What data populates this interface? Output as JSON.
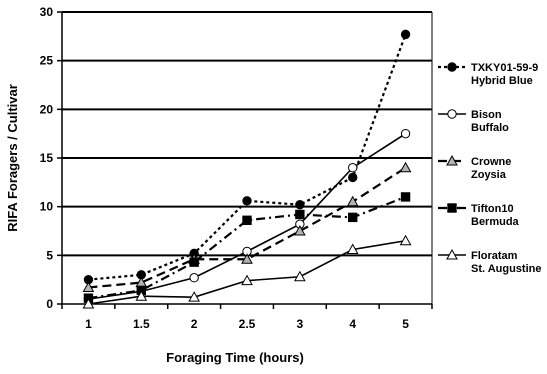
{
  "chart_data": {
    "type": "line",
    "title": "",
    "xlabel": "Foraging Time (hours)",
    "ylabel": "RIFA Foragers / Cultivar",
    "categories": [
      "1",
      "1.5",
      "2",
      "2.5",
      "3",
      "4",
      "5"
    ],
    "ylim": [
      0,
      30
    ],
    "yticks": [
      0,
      5,
      10,
      15,
      20,
      25,
      30
    ],
    "grid": "horizontal",
    "legend_position": "right",
    "series": [
      {
        "name": "TXKY01-59-9 Hybrid Blue",
        "legend_lines": [
          "TXKY01-59-9",
          "Hybrid Blue"
        ],
        "marker": "filled-circle",
        "line_style": "dotted",
        "values": [
          2.5,
          3.0,
          5.2,
          10.6,
          10.2,
          13.0,
          27.7
        ]
      },
      {
        "name": "Bison Buffalo",
        "legend_lines": [
          "Bison",
          "Buffalo"
        ],
        "marker": "open-circle",
        "line_style": "solid",
        "values": [
          0.5,
          1.3,
          2.7,
          5.4,
          8.2,
          14.0,
          17.5
        ]
      },
      {
        "name": "Crowne Zoysia",
        "legend_lines": [
          "Crowne",
          "Zoysia"
        ],
        "marker": "gray-triangle",
        "line_style": "dashed",
        "values": [
          1.7,
          2.2,
          4.6,
          4.6,
          7.5,
          10.5,
          14.0
        ]
      },
      {
        "name": "Tifton10 Bermuda",
        "legend_lines": [
          "Tifton10",
          "Bermuda"
        ],
        "marker": "filled-square",
        "line_style": "dash-dot",
        "values": [
          0.6,
          1.4,
          4.3,
          8.6,
          9.2,
          8.9,
          11.0
        ]
      },
      {
        "name": "Floratam St. Augustine",
        "legend_lines": [
          "Floratam",
          "St. Augustine"
        ],
        "marker": "open-triangle",
        "line_style": "solid",
        "values": [
          0.0,
          0.8,
          0.7,
          2.4,
          2.8,
          5.6,
          6.5
        ]
      }
    ]
  }
}
